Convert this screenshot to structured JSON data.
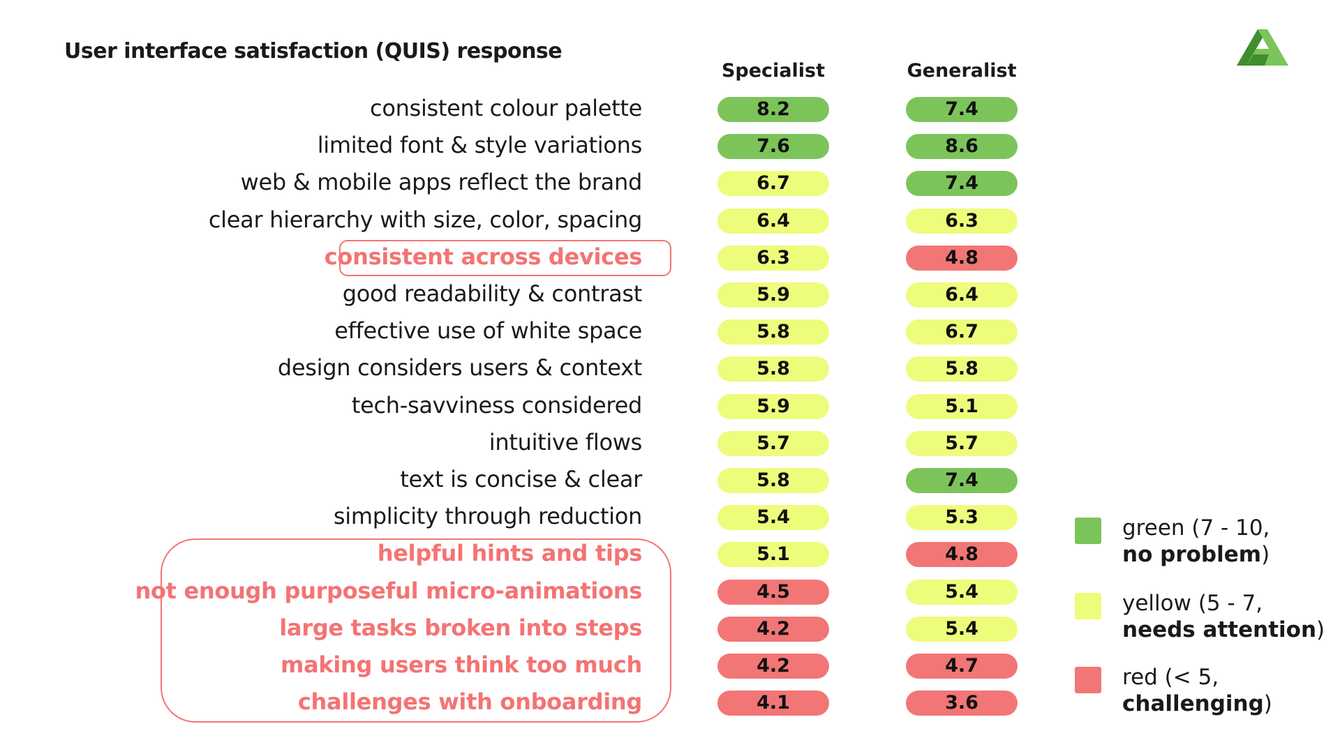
{
  "title": "User interface satisfaction (QUIS) response",
  "colors": {
    "green": "#7cc45a",
    "yellow": "#eefc7c",
    "red": "#f27676",
    "flag": "#f47373",
    "logo_dark": "#3f8f2e",
    "logo_light": "#7cc45a"
  },
  "legend": [
    {
      "color_key": "green",
      "line1": "green (7 - 10,",
      "line2_bold": "no problem",
      "line2_tail": ")"
    },
    {
      "color_key": "yellow",
      "line1": "yellow (5 - 7,",
      "line2_bold": "needs attention",
      "line2_tail": ")"
    },
    {
      "color_key": "red",
      "line1": "red (< 5,",
      "line2_bold": "challenging",
      "line2_tail": ")"
    }
  ],
  "chart_data": {
    "type": "table",
    "columns": [
      "Specialist",
      "Generalist"
    ],
    "rows": [
      {
        "label": "consistent colour palette",
        "values": [
          8.2,
          7.4
        ],
        "flagged": false
      },
      {
        "label": "limited font & style variations",
        "values": [
          7.6,
          8.6
        ],
        "flagged": false
      },
      {
        "label": "web & mobile apps reflect the brand",
        "values": [
          6.7,
          7.4
        ],
        "flagged": false
      },
      {
        "label": "clear hierarchy with size, color, spacing",
        "values": [
          6.4,
          6.3
        ],
        "flagged": false
      },
      {
        "label": "consistent across devices",
        "values": [
          6.3,
          4.8
        ],
        "flagged": true
      },
      {
        "label": "good readability & contrast",
        "values": [
          5.9,
          6.4
        ],
        "flagged": false
      },
      {
        "label": "effective use of white space",
        "values": [
          5.8,
          6.7
        ],
        "flagged": false
      },
      {
        "label": "design considers users & context",
        "values": [
          5.8,
          5.8
        ],
        "flagged": false
      },
      {
        "label": "tech-savviness considered",
        "values": [
          5.9,
          5.1
        ],
        "flagged": false
      },
      {
        "label": "intuitive flows",
        "values": [
          5.7,
          5.7
        ],
        "flagged": false
      },
      {
        "label": "text is concise & clear",
        "values": [
          5.8,
          7.4
        ],
        "flagged": false
      },
      {
        "label": "simplicity through reduction",
        "values": [
          5.4,
          5.3
        ],
        "flagged": false
      },
      {
        "label": "helpful hints and tips",
        "values": [
          5.1,
          4.8
        ],
        "flagged": true
      },
      {
        "label": "not enough purposeful micro-animations",
        "values": [
          4.5,
          5.4
        ],
        "flagged": true
      },
      {
        "label": "large tasks broken into steps",
        "values": [
          4.2,
          5.4
        ],
        "flagged": true
      },
      {
        "label": "making users think too much",
        "values": [
          4.2,
          4.7
        ],
        "flagged": true
      },
      {
        "label": "challenges with onboarding",
        "values": [
          4.1,
          3.6
        ],
        "flagged": true
      }
    ]
  }
}
